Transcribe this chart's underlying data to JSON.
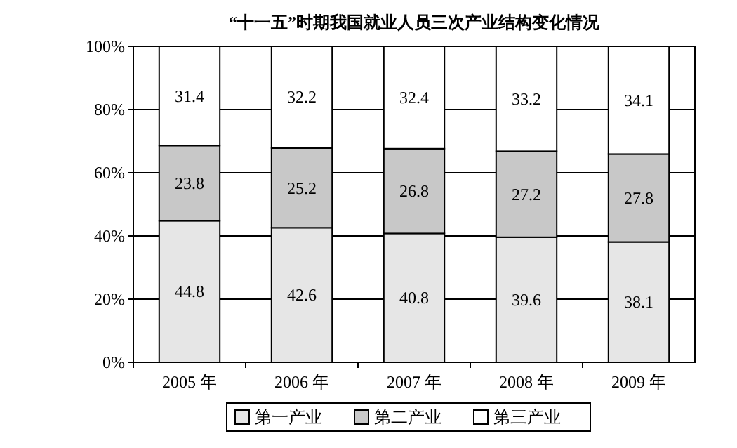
{
  "chart_data": {
    "type": "bar",
    "title": "“十一五”时期我国就业人员三次产业结构变化情况",
    "stacked": true,
    "categories": [
      "2005 年",
      "2006 年",
      "2007 年",
      "2008 年",
      "2009 年"
    ],
    "series": [
      {
        "name": "第一产业",
        "color": "#e6e6e6",
        "values": [
          44.8,
          42.6,
          40.8,
          39.6,
          38.1
        ]
      },
      {
        "name": "第二产业",
        "color": "#c8c8c8",
        "values": [
          23.8,
          25.2,
          26.8,
          27.2,
          27.8
        ]
      },
      {
        "name": "第三产业",
        "color": "#ffffff",
        "values": [
          31.4,
          32.2,
          32.4,
          33.2,
          34.1
        ]
      }
    ],
    "ylim": [
      0,
      100
    ],
    "yticks": [
      {
        "value": 0,
        "label": "0%"
      },
      {
        "value": 20,
        "label": "20%"
      },
      {
        "value": 40,
        "label": "40%"
      },
      {
        "value": 60,
        "label": "60%"
      },
      {
        "value": 80,
        "label": "80%"
      },
      {
        "value": 100,
        "label": "100%"
      }
    ],
    "grid": "y",
    "data_labels": true,
    "legend": "bottom"
  }
}
